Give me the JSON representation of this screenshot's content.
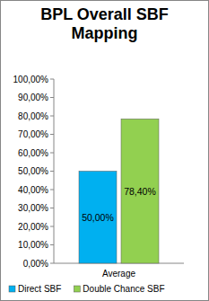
{
  "chart_data": {
    "type": "bar",
    "title": "BPL Overall SBF Mapping",
    "categories": [
      "Average"
    ],
    "series": [
      {
        "name": "Direct SBF",
        "color": "#00b0f0",
        "values": [
          50
        ],
        "value_labels": [
          "50,00%"
        ]
      },
      {
        "name": "Double Chance SBF",
        "color": "#92d050",
        "values": [
          78.4
        ],
        "value_labels": [
          "78,40%"
        ]
      }
    ],
    "ylim": [
      0,
      100
    ],
    "yticks": [
      {
        "value": 0,
        "label": "0,00%"
      },
      {
        "value": 10,
        "label": "10,00%"
      },
      {
        "value": 20,
        "label": "20,00%"
      },
      {
        "value": 30,
        "label": "30,00%"
      },
      {
        "value": 40,
        "label": "40,00%"
      },
      {
        "value": 50,
        "label": "50,00%"
      },
      {
        "value": 60,
        "label": "60,00%"
      },
      {
        "value": 70,
        "label": "70,00%"
      },
      {
        "value": 80,
        "label": "80,00%"
      },
      {
        "value": 90,
        "label": "90,00%"
      },
      {
        "value": 100,
        "label": "100,00%"
      }
    ],
    "grid": false,
    "data_labels": true,
    "legend": "bottom"
  }
}
